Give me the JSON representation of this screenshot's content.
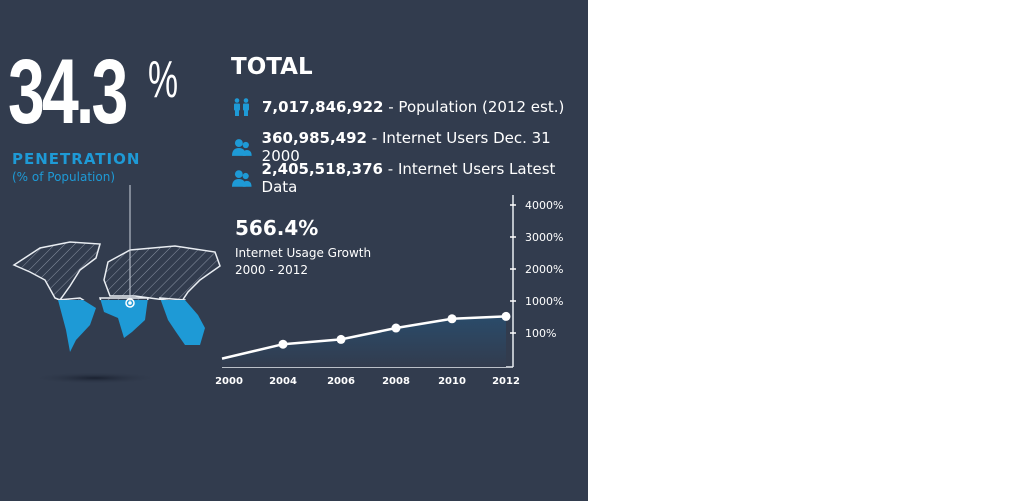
{
  "headline": {
    "value": "34.3",
    "unit": "%",
    "label": "PENETRATION",
    "sublabel": "(% of Population)"
  },
  "total": {
    "title": "TOTAL",
    "rows": [
      {
        "icon": "people-standing-icon",
        "number": "7,017,846,922",
        "text": "- Population (2012 est.)"
      },
      {
        "icon": "users-icon",
        "number": "360,985,492",
        "text": "- Internet Users Dec. 31 2000"
      },
      {
        "icon": "users-icon",
        "number": "2,405,518,376",
        "text": "- Internet Users Latest Data"
      }
    ]
  },
  "growth": {
    "value": "566.4%",
    "line1": "Internet Usage Growth",
    "line2": "2000 - 2012"
  },
  "colors": {
    "background": "#323c4e",
    "accent": "#1e9ad6"
  },
  "chart_data": {
    "type": "line",
    "x": [
      "2000",
      "2004",
      "2006",
      "2008",
      "2010",
      "2012"
    ],
    "values": [
      20,
      65,
      80,
      240,
      500,
      566
    ],
    "ylabel": "",
    "yticks": [
      "100%",
      "1000%",
      "2000%",
      "3000%",
      "4000%"
    ],
    "ytick_values": [
      100,
      1000,
      2000,
      3000,
      4000
    ],
    "ylim": [
      0,
      4000
    ],
    "axis_side": "right"
  }
}
